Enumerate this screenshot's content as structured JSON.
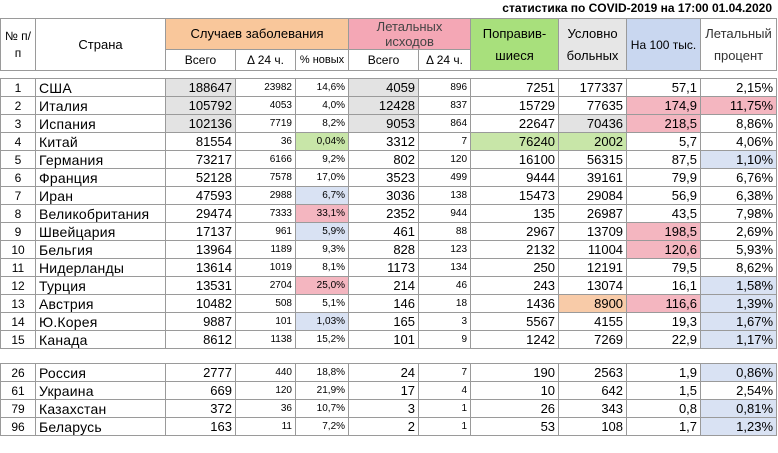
{
  "title": "статистика по COVID-2019 на 17:00 01.04.2020",
  "header": {
    "num": "№ п/п",
    "country": "Страна",
    "cases": "Случаев заболевания",
    "deaths": "Летальных исходов",
    "recovered": "Поправив-шиеся",
    "active": "Условно больных",
    "per100k": "На 100 тыс.",
    "lethal": "Летальный процент",
    "total": "Всего",
    "delta": "Δ 24 ч.",
    "pct_new": "% новых"
  },
  "colors": {
    "cases": "#f9c79b",
    "deaths": "#f4a7b5",
    "recovered": "#a8e07c",
    "per100k": "#c9d7f0"
  },
  "rows": [
    {
      "n": "1",
      "c": "США",
      "t": "188647",
      "d": "23982",
      "p": "14,6%",
      "dt": "4059",
      "dd": "896",
      "r": "7251",
      "a": "177337",
      "k": "57,1",
      "l": "2,15%"
    },
    {
      "n": "2",
      "c": "Италия",
      "t": "105792",
      "d": "4053",
      "p": "4,0%",
      "dt": "12428",
      "dd": "837",
      "r": "15729",
      "a": "77635",
      "k": "174,9",
      "l": "11,75%"
    },
    {
      "n": "3",
      "c": "Испания",
      "t": "102136",
      "d": "7719",
      "p": "8,2%",
      "dt": "9053",
      "dd": "864",
      "r": "22647",
      "a": "70436",
      "k": "218,5",
      "l": "8,86%"
    },
    {
      "n": "4",
      "c": "Китай",
      "t": "81554",
      "d": "36",
      "p": "0,04%",
      "dt": "3312",
      "dd": "7",
      "r": "76240",
      "a": "2002",
      "k": "5,7",
      "l": "4,06%"
    },
    {
      "n": "5",
      "c": "Германия",
      "t": "73217",
      "d": "6166",
      "p": "9,2%",
      "dt": "802",
      "dd": "120",
      "r": "16100",
      "a": "56315",
      "k": "87,5",
      "l": "1,10%"
    },
    {
      "n": "6",
      "c": "Франция",
      "t": "52128",
      "d": "7578",
      "p": "17,0%",
      "dt": "3523",
      "dd": "499",
      "r": "9444",
      "a": "39161",
      "k": "79,9",
      "l": "6,76%"
    },
    {
      "n": "7",
      "c": "Иран",
      "t": "47593",
      "d": "2988",
      "p": "6,7%",
      "dt": "3036",
      "dd": "138",
      "r": "15473",
      "a": "29084",
      "k": "56,9",
      "l": "6,38%"
    },
    {
      "n": "8",
      "c": "Великобритания",
      "t": "29474",
      "d": "7333",
      "p": "33,1%",
      "dt": "2352",
      "dd": "944",
      "r": "135",
      "a": "26987",
      "k": "43,5",
      "l": "7,98%"
    },
    {
      "n": "9",
      "c": "Швейцария",
      "t": "17137",
      "d": "961",
      "p": "5,9%",
      "dt": "461",
      "dd": "88",
      "r": "2967",
      "a": "13709",
      "k": "198,5",
      "l": "2,69%"
    },
    {
      "n": "10",
      "c": "Бельгия",
      "t": "13964",
      "d": "1189",
      "p": "9,3%",
      "dt": "828",
      "dd": "123",
      "r": "2132",
      "a": "11004",
      "k": "120,6",
      "l": "5,93%"
    },
    {
      "n": "11",
      "c": "Нидерланды",
      "t": "13614",
      "d": "1019",
      "p": "8,1%",
      "dt": "1173",
      "dd": "134",
      "r": "250",
      "a": "12191",
      "k": "79,5",
      "l": "8,62%"
    },
    {
      "n": "12",
      "c": "Турция",
      "t": "13531",
      "d": "2704",
      "p": "25,0%",
      "dt": "214",
      "dd": "46",
      "r": "243",
      "a": "13074",
      "k": "16,1",
      "l": "1,58%"
    },
    {
      "n": "13",
      "c": "Австрия",
      "t": "10482",
      "d": "508",
      "p": "5,1%",
      "dt": "146",
      "dd": "18",
      "r": "1436",
      "a": "8900",
      "k": "116,6",
      "l": "1,39%"
    },
    {
      "n": "14",
      "c": "Ю.Корея",
      "t": "9887",
      "d": "101",
      "p": "1,03%",
      "dt": "165",
      "dd": "3",
      "r": "5567",
      "a": "4155",
      "k": "19,3",
      "l": "1,67%"
    },
    {
      "n": "15",
      "c": "Канада",
      "t": "8612",
      "d": "1138",
      "p": "15,2%",
      "dt": "101",
      "dd": "9",
      "r": "1242",
      "a": "7269",
      "k": "22,9",
      "l": "1,17%"
    }
  ],
  "rows2": [
    {
      "n": "26",
      "c": "Россия",
      "t": "2777",
      "d": "440",
      "p": "18,8%",
      "dt": "24",
      "dd": "7",
      "r": "190",
      "a": "2563",
      "k": "1,9",
      "l": "0,86%"
    },
    {
      "n": "61",
      "c": "Украина",
      "t": "669",
      "d": "120",
      "p": "21,9%",
      "dt": "17",
      "dd": "4",
      "r": "10",
      "a": "642",
      "k": "1,5",
      "l": "2,54%"
    },
    {
      "n": "79",
      "c": "Казахстан",
      "t": "372",
      "d": "36",
      "p": "10,7%",
      "dt": "3",
      "dd": "1",
      "r": "26",
      "a": "343",
      "k": "0,8",
      "l": "0,81%"
    },
    {
      "n": "96",
      "c": "Беларусь",
      "t": "163",
      "d": "11",
      "p": "7,2%",
      "dt": "2",
      "dd": "1",
      "r": "53",
      "a": "108",
      "k": "1,7",
      "l": "1,23%"
    }
  ]
}
